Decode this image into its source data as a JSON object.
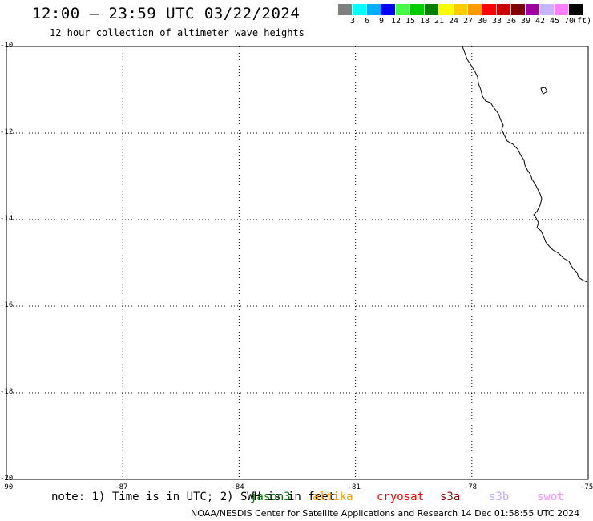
{
  "title": "12:00 – 23:59 UTC 03/22/2024",
  "subtitle": "12 hour collection of altimeter wave heights",
  "color_scale": {
    "colors": [
      "#808080",
      "#00ffff",
      "#00b0ff",
      "#0000ff",
      "#40ff40",
      "#00cc00",
      "#008000",
      "#ffff00",
      "#ffcc00",
      "#ff9900",
      "#ff0000",
      "#cc0000",
      "#800000",
      "#a000a0",
      "#c8b4ff",
      "#ff80ff",
      "#000000"
    ],
    "labels": [
      "3",
      "6",
      "9",
      "12",
      "15",
      "18",
      "21",
      "24",
      "27",
      "30",
      "33",
      "36",
      "39",
      "42",
      "45",
      "70"
    ],
    "unit": "(ft)"
  },
  "map": {
    "lon_labels": [
      "-90",
      "-87",
      "-84",
      "-81",
      "-78",
      "-75"
    ],
    "lat_labels": [
      "-10",
      "-12",
      "-14",
      "-16",
      "-18",
      "-20"
    ]
  },
  "note": "note: 1) Time is in UTC; 2) SWH is in feet",
  "satellites": [
    {
      "name": "jason3",
      "color": "#007000"
    },
    {
      "name": "altika",
      "color": "#ff9900"
    },
    {
      "name": "cryosat",
      "color": "#ff0000"
    },
    {
      "name": "s3a",
      "color": "#900000"
    },
    {
      "name": "s3b",
      "color": "#c0a8ff"
    },
    {
      "name": "swot",
      "color": "#ff90ff"
    }
  ],
  "credit": "NOAA/NESDIS Center for Satellite Applications and Research    14 Dec 01:58:55 UTC 2024"
}
